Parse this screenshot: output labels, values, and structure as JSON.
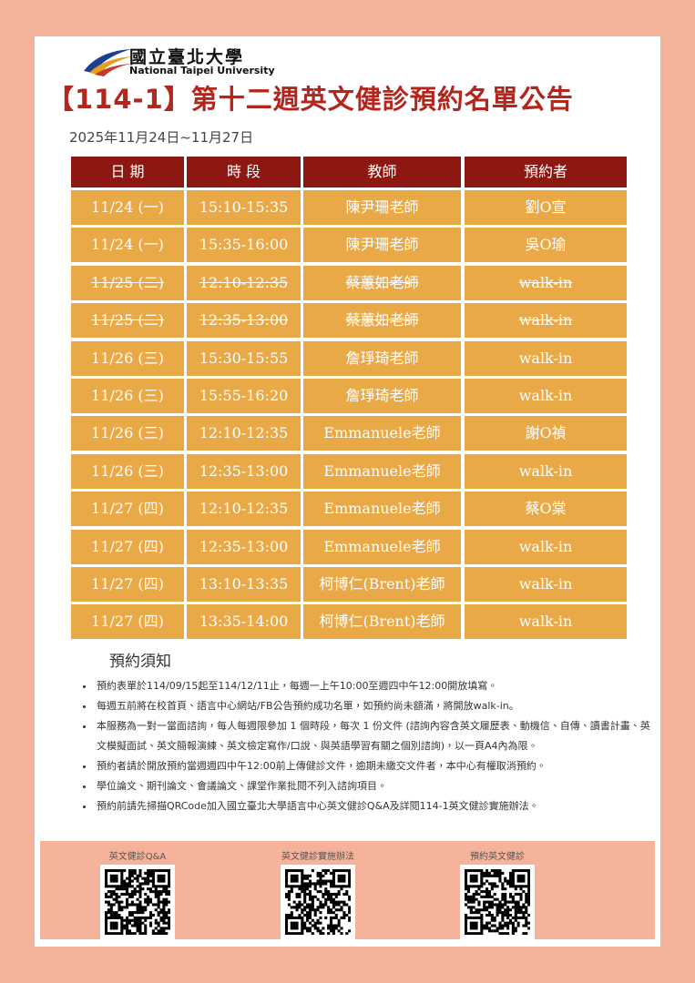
{
  "header": {
    "university_zh": "國立臺北大學",
    "university_en": "National Taipei University",
    "title": "【114-1】第十二週英文健診預約名單公告",
    "date_range": "2025年11月24日~11月27日"
  },
  "table": {
    "headers": [
      "日 期",
      "時 段",
      "教師",
      "預約者"
    ],
    "rows": [
      {
        "cells": [
          "11/24 (一)",
          "15:10-15:35",
          "陳尹珊老師",
          "劉O宣"
        ],
        "struck": false
      },
      {
        "cells": [
          "11/24 (一)",
          "15:35-16:00",
          "陳尹珊老師",
          "吳O瑜"
        ],
        "struck": false
      },
      {
        "cells": [
          "11/25 (二)",
          "12:10-12:35",
          "蔡蕙如老師",
          "walk-in"
        ],
        "struck": true
      },
      {
        "cells": [
          "11/25 (二)",
          "12:35-13:00",
          "蔡蕙如老師",
          "walk-in"
        ],
        "struck": true
      },
      {
        "cells": [
          "11/26 (三)",
          "15:30-15:55",
          "詹琤琦老師",
          "walk-in"
        ],
        "struck": false
      },
      {
        "cells": [
          "11/26 (三)",
          "15:55-16:20",
          "詹琤琦老師",
          "walk-in"
        ],
        "struck": false
      },
      {
        "cells": [
          "11/26 (三)",
          "12:10-12:35",
          "Emmanuele老師",
          "謝O禎"
        ],
        "struck": false
      },
      {
        "cells": [
          "11/26 (三)",
          "12:35-13:00",
          "Emmanuele老師",
          "walk-in"
        ],
        "struck": false
      },
      {
        "cells": [
          "11/27 (四)",
          "12:10-12:35",
          "Emmanuele老師",
          "蔡O棠"
        ],
        "struck": false
      },
      {
        "cells": [
          "11/27 (四)",
          "12:35-13:00",
          "Emmanuele老師",
          "walk-in"
        ],
        "struck": false
      },
      {
        "cells": [
          "11/27 (四)",
          "13:10-13:35",
          "柯博仁(Brent)老師",
          "walk-in"
        ],
        "struck": false
      },
      {
        "cells": [
          "11/27 (四)",
          "13:35-14:00",
          "柯博仁(Brent)老師",
          "walk-in"
        ],
        "struck": false
      }
    ]
  },
  "notes": {
    "title": "預約須知",
    "items": [
      "預約表單於114/09/15起至114/12/11止，每週一上午10:00至週四中午12:00開放填寫。",
      "每週五前將在校首頁、語言中心網站/FB公告預約成功名單，如預約尚未額滿，將開放walk-in。",
      "本服務為一對一當面諮詢，每人每週限參加 1 個時段，每次 1 份文件 (諮詢內容含英文履歷表、動機信、自傳、讀書計畫、英文模擬面試、英文簡報演練、英文檢定寫作/口說、與英語學習有關之個別諮詢)，以一頁A4內為限。",
      "預約者請於開放預約當週週四中午12:00前上傳健診文件，逾期未繳交文件者，本中心有權取消預約。",
      "學位論文、期刊論文、會議論文、課堂作業批閱不列入諮詢項目。",
      "預約前請先掃描QRCode加入國立臺北大學語言中心英文健診Q&A及詳閱114-1英文健診實施辦法。"
    ]
  },
  "qr": {
    "labels": [
      "英文健診Q&A",
      "英文健診實施辦法",
      "預約英文健診"
    ]
  }
}
